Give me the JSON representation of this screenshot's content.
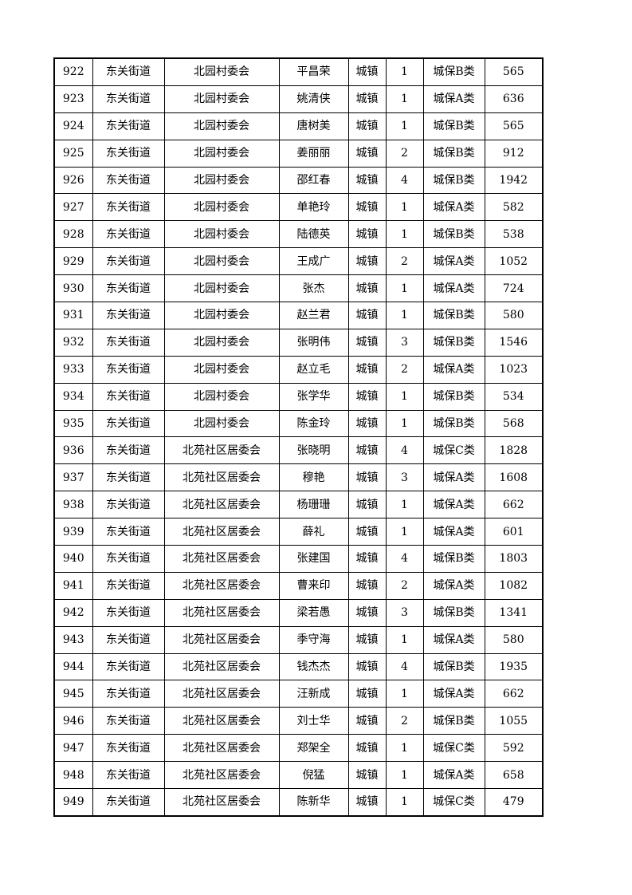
{
  "rows": [
    [
      "922",
      "东关街道",
      "北园村委会",
      "平昌荣",
      "城镇",
      "1",
      "城保B类",
      "565"
    ],
    [
      "923",
      "东关街道",
      "北园村委会",
      "姚清侠",
      "城镇",
      "1",
      "城保A类",
      "636"
    ],
    [
      "924",
      "东关街道",
      "北园村委会",
      "唐树美",
      "城镇",
      "1",
      "城保B类",
      "565"
    ],
    [
      "925",
      "东关街道",
      "北园村委会",
      "姜丽丽",
      "城镇",
      "2",
      "城保B类",
      "912"
    ],
    [
      "926",
      "东关街道",
      "北园村委会",
      "邵红春",
      "城镇",
      "4",
      "城保B类",
      "1942"
    ],
    [
      "927",
      "东关街道",
      "北园村委会",
      "单艳玲",
      "城镇",
      "1",
      "城保A类",
      "582"
    ],
    [
      "928",
      "东关街道",
      "北园村委会",
      "陆德英",
      "城镇",
      "1",
      "城保B类",
      "538"
    ],
    [
      "929",
      "东关街道",
      "北园村委会",
      "王成广",
      "城镇",
      "2",
      "城保A类",
      "1052"
    ],
    [
      "930",
      "东关街道",
      "北园村委会",
      "张杰",
      "城镇",
      "1",
      "城保A类",
      "724"
    ],
    [
      "931",
      "东关街道",
      "北园村委会",
      "赵兰君",
      "城镇",
      "1",
      "城保B类",
      "580"
    ],
    [
      "932",
      "东关街道",
      "北园村委会",
      "张明伟",
      "城镇",
      "3",
      "城保B类",
      "1546"
    ],
    [
      "933",
      "东关街道",
      "北园村委会",
      "赵立毛",
      "城镇",
      "2",
      "城保A类",
      "1023"
    ],
    [
      "934",
      "东关街道",
      "北园村委会",
      "张学华",
      "城镇",
      "1",
      "城保B类",
      "534"
    ],
    [
      "935",
      "东关街道",
      "北园村委会",
      "陈金玲",
      "城镇",
      "1",
      "城保B类",
      "568"
    ],
    [
      "936",
      "东关街道",
      "北苑社区居委会",
      "张晓明",
      "城镇",
      "4",
      "城保C类",
      "1828"
    ],
    [
      "937",
      "东关街道",
      "北苑社区居委会",
      "穆艳",
      "城镇",
      "3",
      "城保A类",
      "1608"
    ],
    [
      "938",
      "东关街道",
      "北苑社区居委会",
      "杨珊珊",
      "城镇",
      "1",
      "城保A类",
      "662"
    ],
    [
      "939",
      "东关街道",
      "北苑社区居委会",
      "薛礼",
      "城镇",
      "1",
      "城保A类",
      "601"
    ],
    [
      "940",
      "东关街道",
      "北苑社区居委会",
      "张建国",
      "城镇",
      "4",
      "城保B类",
      "1803"
    ],
    [
      "941",
      "东关街道",
      "北苑社区居委会",
      "曹来印",
      "城镇",
      "2",
      "城保A类",
      "1082"
    ],
    [
      "942",
      "东关街道",
      "北苑社区居委会",
      "梁若愚",
      "城镇",
      "3",
      "城保B类",
      "1341"
    ],
    [
      "943",
      "东关街道",
      "北苑社区居委会",
      "季守海",
      "城镇",
      "1",
      "城保A类",
      "580"
    ],
    [
      "944",
      "东关街道",
      "北苑社区居委会",
      "钱杰杰",
      "城镇",
      "4",
      "城保B类",
      "1935"
    ],
    [
      "945",
      "东关街道",
      "北苑社区居委会",
      "汪新成",
      "城镇",
      "1",
      "城保A类",
      "662"
    ],
    [
      "946",
      "东关街道",
      "北苑社区居委会",
      "刘士华",
      "城镇",
      "2",
      "城保B类",
      "1055"
    ],
    [
      "947",
      "东关街道",
      "北苑社区居委会",
      "郑架全",
      "城镇",
      "1",
      "城保C类",
      "592"
    ],
    [
      "948",
      "东关街道",
      "北苑社区居委会",
      "倪猛",
      "城镇",
      "1",
      "城保A类",
      "658"
    ],
    [
      "949",
      "东关街道",
      "北苑社区居委会",
      "陈新华",
      "城镇",
      "1",
      "城保C类",
      "479"
    ]
  ]
}
